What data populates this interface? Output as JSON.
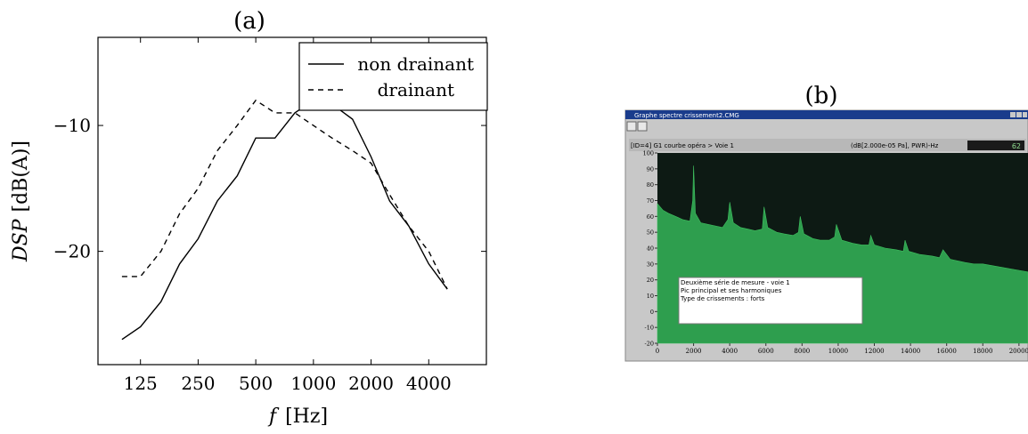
{
  "chart_data": [
    {
      "panel_label": "(a)",
      "type": "line",
      "xlabel_var": "f",
      "xlabel_unit": "[Hz]",
      "ylabel_var": "DSP",
      "ylabel_unit": "[dB(A)]",
      "x_scale": "log2",
      "x_ticks": [
        125,
        250,
        500,
        1000,
        2000,
        4000
      ],
      "x_tick_labels": [
        "125",
        "250",
        "500",
        "1000",
        "2000",
        "4000"
      ],
      "y_ticks": [
        -10,
        -20
      ],
      "y_tick_labels": [
        "−10",
        "−20"
      ],
      "xlim": [
        75,
        8000
      ],
      "ylim": [
        -29,
        -3
      ],
      "legend_position": "top-right",
      "series": [
        {
          "name": "non drainant",
          "style": "solid",
          "x": [
            100,
            125,
            160,
            200,
            250,
            315,
            400,
            500,
            630,
            800,
            1000,
            1250,
            1600,
            2000,
            2500,
            3150,
            4000,
            5000
          ],
          "y": [
            -27,
            -26,
            -24,
            -21,
            -19,
            -16,
            -14,
            -11,
            -11,
            -9,
            -8,
            -8.3,
            -9.5,
            -12.5,
            -16,
            -18,
            -21,
            -23
          ]
        },
        {
          "name": "drainant",
          "style": "dashed",
          "x": [
            100,
            125,
            160,
            200,
            250,
            315,
            400,
            500,
            630,
            800,
            1000,
            1250,
            1600,
            2000,
            2500,
            3150,
            4000,
            5000
          ],
          "y": [
            -22,
            -22,
            -20,
            -17,
            -15,
            -12,
            -10,
            -8,
            -9,
            -9,
            -10,
            -11,
            -12,
            -13,
            -15.5,
            -18,
            -20,
            -23
          ]
        }
      ]
    },
    {
      "panel_label": "(b)",
      "type": "area",
      "window_title": "Graphe spectre crissement2.CMG",
      "channel_label": "[ID=4] G1 courbe opéra > Voie 1",
      "units_label": "(dB[2.000e-05 Pa], PWR)-Hz",
      "readout_value": "62",
      "x_ticks": [
        0,
        2000,
        4000,
        6000,
        8000,
        10000,
        12000,
        14000,
        16000,
        18000,
        20000
      ],
      "x_tick_labels": [
        "0",
        "2000",
        "4000",
        "6000",
        "8000",
        "10000",
        "12000",
        "14000",
        "16000",
        "18000",
        "20000"
      ],
      "y_ticks": [
        100,
        90,
        80,
        70,
        60,
        50,
        40,
        30,
        20,
        10,
        0,
        -10,
        -20
      ],
      "y_tick_labels": [
        "100",
        "90",
        "80",
        "70",
        "60",
        "50",
        "40",
        "30",
        "20",
        "10",
        "0",
        "-10",
        "-20"
      ],
      "xlim": [
        0,
        20500
      ],
      "ylim": [
        -20,
        100
      ],
      "envelope": {
        "x": [
          0,
          300,
          600,
          1000,
          1400,
          1800,
          1950,
          2000,
          2100,
          2400,
          2800,
          3200,
          3600,
          3900,
          4000,
          4200,
          4600,
          5000,
          5400,
          5800,
          5900,
          6100,
          6600,
          7000,
          7500,
          7800,
          7900,
          8100,
          8600,
          9000,
          9500,
          9800,
          9900,
          10200,
          10800,
          11300,
          11700,
          11800,
          12000,
          12600,
          13200,
          13600,
          13700,
          13900,
          14500,
          15200,
          15600,
          15800,
          16200,
          17000,
          17500,
          18000,
          19000,
          20000,
          20500
        ],
        "y": [
          68,
          64,
          62,
          60,
          58,
          57,
          70,
          92,
          62,
          56,
          55,
          54,
          53,
          58,
          69,
          56,
          53,
          52,
          51,
          52,
          66,
          53,
          50,
          49,
          48,
          50,
          60,
          49,
          46,
          45,
          45,
          47,
          55,
          45,
          43,
          42,
          42,
          48,
          42,
          40,
          39,
          38,
          45,
          38,
          36,
          35,
          34,
          39,
          33,
          31,
          30,
          30,
          28,
          26,
          25
        ]
      },
      "annotation_lines": [
        "Deuxième série de mesure - voie 1",
        "Pic principal et ses harmoniques",
        "Type de crissements : forts"
      ],
      "colors": {
        "plot_background": "#0d1a14",
        "fill": "#2e9e4e",
        "window_bar": "#1a3c8c",
        "frame": "#c8c8c8"
      }
    }
  ]
}
